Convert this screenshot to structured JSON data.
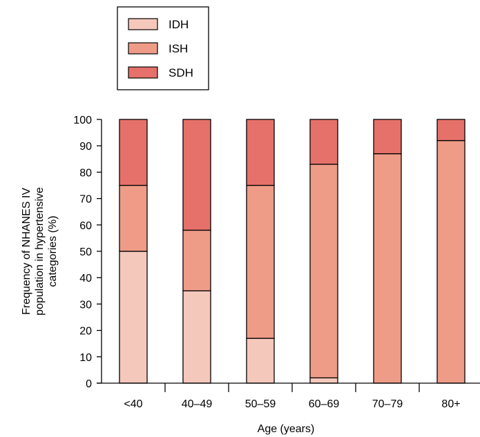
{
  "chart_data": {
    "type": "bar",
    "stacked": true,
    "categories": [
      "<40",
      "40–49",
      "50–59",
      "60–69",
      "70–79",
      "80+"
    ],
    "series": [
      {
        "name": "IDH",
        "color": "#f5c8bc",
        "values": [
          50,
          35,
          17,
          2,
          0,
          0
        ]
      },
      {
        "name": "ISH",
        "color": "#ee9c88",
        "values": [
          25,
          23,
          58,
          81,
          87,
          92
        ]
      },
      {
        "name": "SDH",
        "color": "#e6716a",
        "values": [
          25,
          42,
          25,
          17,
          13,
          8
        ]
      }
    ],
    "xlabel": "Age (years)",
    "ylabel": [
      "Frequency of NHANES IV",
      "population in hypertensive",
      "categories (%)"
    ],
    "ylim": [
      0,
      100
    ],
    "yticks": [
      0,
      10,
      20,
      30,
      40,
      50,
      60,
      70,
      80,
      90,
      100
    ],
    "grid": false,
    "legend_position": "top-left"
  }
}
